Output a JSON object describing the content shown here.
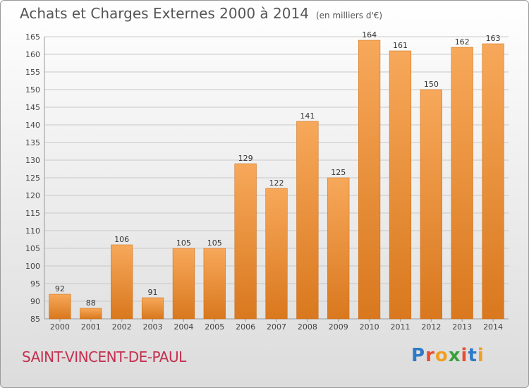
{
  "title": "Achats et Charges Externes 2000 à 2014",
  "unit": "(en milliers d'€)",
  "commune": "SAINT-VINCENT-DE-PAUL",
  "logo": {
    "text": "Proxiti",
    "colors": [
      "#2e7ac7",
      "#e84e2e",
      "#f0a020",
      "#3aa03a",
      "#e84e2e",
      "#2e7ac7",
      "#f0a020"
    ]
  },
  "colors": {
    "bar_top": "#f7a85a",
    "bar_bottom": "#d9781e",
    "bar_edge": "#c96a12"
  },
  "chart_data": {
    "type": "bar",
    "categories": [
      "2000",
      "2001",
      "2002",
      "2003",
      "2004",
      "2005",
      "2006",
      "2007",
      "2008",
      "2009",
      "2010",
      "2011",
      "2012",
      "2013",
      "2014"
    ],
    "values": [
      92,
      88,
      106,
      91,
      105,
      105,
      129,
      122,
      141,
      125,
      164,
      161,
      150,
      162,
      163
    ],
    "ylim": [
      85,
      165
    ],
    "yticks": [
      85,
      90,
      95,
      100,
      105,
      110,
      115,
      120,
      125,
      130,
      135,
      140,
      145,
      150,
      155,
      160,
      165
    ],
    "grid": true,
    "data_labels": true
  }
}
